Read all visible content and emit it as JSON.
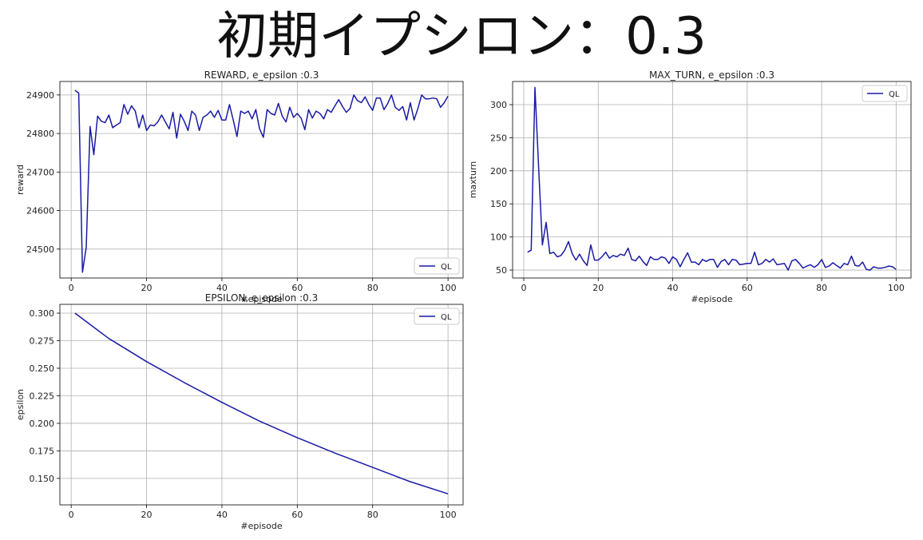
{
  "figure_title": "初期イプシロン：0.3",
  "chart_data": [
    {
      "type": "line",
      "title": "REWARD, e_epsilon :0.3",
      "xlabel": "#episode",
      "ylabel": "reward",
      "xlim": [
        -3,
        104
      ],
      "ylim": [
        24425,
        24935
      ],
      "xticks": [
        0,
        20,
        40,
        60,
        80,
        100
      ],
      "yticks": [
        24500,
        24600,
        24700,
        24800,
        24900
      ],
      "grid": true,
      "legend": "lower-right",
      "series": [
        {
          "name": "QL",
          "color": "#1a1aa6",
          "x": [
            1,
            2,
            3,
            4,
            5,
            6,
            7,
            8,
            9,
            10,
            11,
            12,
            13,
            14,
            15,
            16,
            17,
            18,
            19,
            20,
            21,
            22,
            23,
            24,
            25,
            26,
            27,
            28,
            29,
            30,
            31,
            32,
            33,
            34,
            35,
            36,
            37,
            38,
            39,
            40,
            41,
            42,
            43,
            44,
            45,
            46,
            47,
            48,
            49,
            50,
            51,
            52,
            53,
            54,
            55,
            56,
            57,
            58,
            59,
            60,
            61,
            62,
            63,
            64,
            65,
            66,
            67,
            68,
            69,
            70,
            71,
            72,
            73,
            74,
            75,
            76,
            77,
            78,
            79,
            80,
            81,
            82,
            83,
            84,
            85,
            86,
            87,
            88,
            89,
            90,
            91,
            92,
            93,
            94,
            95,
            96,
            97,
            98,
            99,
            100
          ],
          "values": [
            24912,
            24905,
            24440,
            24505,
            24818,
            24745,
            24845,
            24832,
            24828,
            24848,
            24815,
            24822,
            24828,
            24875,
            24850,
            24872,
            24858,
            24815,
            24848,
            24808,
            24822,
            24820,
            24830,
            24848,
            24830,
            24812,
            24855,
            24788,
            24850,
            24832,
            24808,
            24858,
            24848,
            24808,
            24842,
            24848,
            24858,
            24842,
            24860,
            24835,
            24835,
            24875,
            24835,
            24792,
            24858,
            24852,
            24858,
            24838,
            24862,
            24812,
            24790,
            24862,
            24852,
            24848,
            24878,
            24845,
            24830,
            24868,
            24842,
            24852,
            24840,
            24810,
            24862,
            24840,
            24858,
            24852,
            24838,
            24862,
            24855,
            24872,
            24888,
            24870,
            24855,
            24865,
            24900,
            24885,
            24880,
            24895,
            24875,
            24860,
            24892,
            24892,
            24862,
            24878,
            24900,
            24868,
            24860,
            24870,
            24835,
            24880,
            24835,
            24865,
            24900,
            24890,
            24890,
            24892,
            24890,
            24868,
            24880,
            24897
          ]
        }
      ]
    },
    {
      "type": "line",
      "title": "MAX_TURN, e_epsilon :0.3",
      "xlabel": "#episode",
      "ylabel": "maxturn",
      "xlim": [
        -3,
        104
      ],
      "ylim": [
        38,
        335
      ],
      "xticks": [
        0,
        20,
        40,
        60,
        80,
        100
      ],
      "yticks": [
        50,
        100,
        150,
        200,
        250,
        300
      ],
      "grid": true,
      "legend": "top-right",
      "series": [
        {
          "name": "QL",
          "color": "#1a1aa6",
          "x": [
            1,
            2,
            3,
            4,
            5,
            6,
            7,
            8,
            9,
            10,
            11,
            12,
            13,
            14,
            15,
            16,
            17,
            18,
            19,
            20,
            21,
            22,
            23,
            24,
            25,
            26,
            27,
            28,
            29,
            30,
            31,
            32,
            33,
            34,
            35,
            36,
            37,
            38,
            39,
            40,
            41,
            42,
            43,
            44,
            45,
            46,
            47,
            48,
            49,
            50,
            51,
            52,
            53,
            54,
            55,
            56,
            57,
            58,
            59,
            60,
            61,
            62,
            63,
            64,
            65,
            66,
            67,
            68,
            69,
            70,
            71,
            72,
            73,
            74,
            75,
            76,
            77,
            78,
            79,
            80,
            81,
            82,
            83,
            84,
            85,
            86,
            87,
            88,
            89,
            90,
            91,
            92,
            93,
            94,
            95,
            96,
            97,
            98,
            99,
            100
          ],
          "values": [
            77,
            80,
            326,
            205,
            88,
            122,
            75,
            77,
            70,
            72,
            80,
            93,
            75,
            65,
            74,
            64,
            57,
            88,
            65,
            65,
            70,
            77,
            68,
            72,
            70,
            74,
            72,
            83,
            66,
            64,
            71,
            63,
            57,
            70,
            66,
            66,
            70,
            68,
            60,
            70,
            66,
            55,
            66,
            76,
            62,
            62,
            58,
            66,
            63,
            66,
            66,
            54,
            63,
            66,
            58,
            66,
            65,
            58,
            59,
            60,
            60,
            77,
            58,
            60,
            66,
            62,
            67,
            58,
            59,
            60,
            50,
            64,
            66,
            60,
            53,
            56,
            58,
            54,
            58,
            66,
            54,
            56,
            61,
            57,
            53,
            60,
            58,
            71,
            57,
            56,
            62,
            51,
            50,
            55,
            53,
            53,
            54,
            56,
            55,
            51
          ]
        }
      ]
    },
    {
      "type": "line",
      "title": "EPSILON, e_epsilon :0.3",
      "xlabel": "#episode",
      "ylabel": "epsilon",
      "xlim": [
        -3,
        104
      ],
      "ylim": [
        0.126,
        0.308
      ],
      "xticks": [
        0,
        20,
        40,
        60,
        80,
        100
      ],
      "yticks": [
        0.15,
        0.175,
        0.2,
        0.225,
        0.25,
        0.275,
        0.3
      ],
      "grid": true,
      "legend": "top-right",
      "series": [
        {
          "name": "QL",
          "color": "#1a1aa6",
          "x": [
            1,
            10,
            20,
            30,
            40,
            50,
            60,
            70,
            80,
            90,
            100
          ],
          "values": [
            0.3,
            0.277,
            0.256,
            0.237,
            0.219,
            0.202,
            0.187,
            0.173,
            0.16,
            0.147,
            0.136
          ]
        }
      ]
    }
  ]
}
